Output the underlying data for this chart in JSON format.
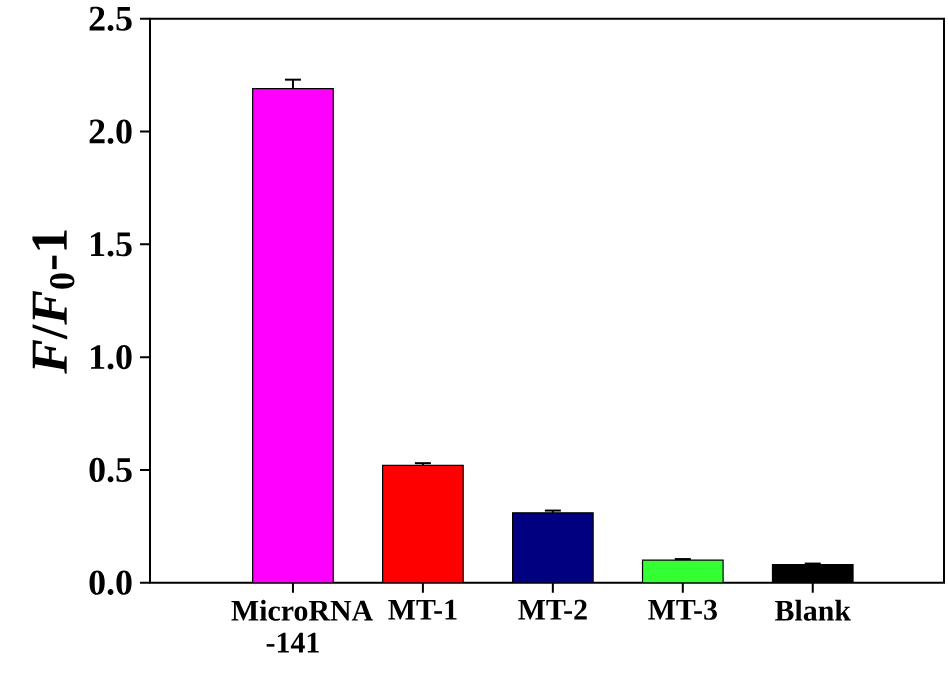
{
  "chart_data": {
    "type": "bar",
    "ylabel": "*F*/*F*$_{0}$-1",
    "categories": [
      "MicroRNA -141",
      "MT-1",
      "MT-2",
      "MT-3",
      "Blank"
    ],
    "values": [
      2.19,
      0.52,
      0.31,
      0.1,
      0.08
    ],
    "errors": [
      0.04,
      0.01,
      0.01,
      0.005,
      0.005
    ],
    "colors": [
      "#ff00ff",
      "#ff0000",
      "#000080",
      "#33ff33",
      "#000000"
    ],
    "ylim": [
      0,
      2.5
    ],
    "yticks": [
      {
        "value": 0,
        "label": "0.0"
      },
      0.5,
      {
        "value": 1,
        "label": "1.0"
      },
      1.5,
      {
        "value": 2,
        "label": "2.0"
      },
      2.5
    ],
    "grid": false
  }
}
